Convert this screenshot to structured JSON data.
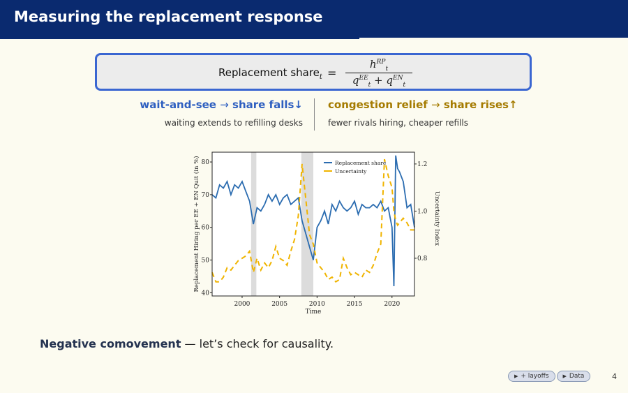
{
  "slide": {
    "title": "Measuring the replacement response",
    "page_number": "4"
  },
  "formula": {
    "lhs": "Replacement share",
    "lhs_sub": "t",
    "equals": "=",
    "num_base": "h",
    "num_sub": "t",
    "num_sup": "RP",
    "den_a_base": "q",
    "den_a_sub": "t",
    "den_a_sup": "EE",
    "den_plus": "+",
    "den_b_base": "q",
    "den_b_sub": "t",
    "den_b_sup": "EN"
  },
  "left": {
    "a": "wait-and-see",
    "arrow": "→",
    "b": "share falls",
    "dir": "↓",
    "sub": "waiting extends to refilling desks"
  },
  "right": {
    "a": "congestion relief",
    "arrow": "→",
    "b": "share rises",
    "dir": "↑",
    "sub": "fewer rivals hiring, cheaper refills"
  },
  "chart_data": {
    "type": "line",
    "xlabel": "Time",
    "ylabel": "Replacement Hiring per EE + EN Quit (in %)",
    "y2label": "Uncertainty Index",
    "xlim": [
      1996,
      2023
    ],
    "ylim": [
      39,
      83
    ],
    "y2lim": [
      0.64,
      1.25
    ],
    "x_ticks": [
      2000,
      2005,
      2010,
      2015,
      2020
    ],
    "y_ticks": [
      40,
      50,
      60,
      70,
      80
    ],
    "y2_ticks": [
      0.8,
      1.0,
      1.2
    ],
    "legend_position": "top-center",
    "recessions": [
      [
        2001.2,
        2001.9
      ],
      [
        2007.9,
        2009.5
      ]
    ],
    "colors": {
      "replacement": "#2b6cb0",
      "uncertainty": "#f0b400",
      "recession": "#dcdcdc"
    },
    "series": [
      {
        "name": "Replacement share",
        "axis": "left",
        "style": "solid",
        "x": [
          1996.0,
          1996.5,
          1997.0,
          1997.5,
          1998.0,
          1998.5,
          1999.0,
          1999.5,
          2000.0,
          2000.5,
          2001.0,
          2001.5,
          2002.0,
          2002.5,
          2003.0,
          2003.5,
          2004.0,
          2004.5,
          2005.0,
          2005.5,
          2006.0,
          2006.5,
          2007.0,
          2007.5,
          2008.0,
          2008.5,
          2009.0,
          2009.5,
          2010.0,
          2010.5,
          2011.0,
          2011.5,
          2012.0,
          2012.5,
          2013.0,
          2013.5,
          2014.0,
          2014.5,
          2015.0,
          2015.5,
          2016.0,
          2016.5,
          2017.0,
          2017.5,
          2018.0,
          2018.5,
          2019.0,
          2019.5,
          2020.0,
          2020.25,
          2020.5,
          2020.75,
          2021.0,
          2021.5,
          2022.0,
          2022.5,
          2023.0
        ],
        "values": [
          70,
          69,
          73,
          72,
          74,
          70,
          73,
          72,
          74,
          71,
          68,
          61,
          66,
          65,
          67,
          70,
          68,
          70,
          67,
          69,
          70,
          67,
          68,
          69,
          62,
          58,
          54,
          50,
          60,
          62,
          65,
          61,
          67,
          65,
          68,
          66,
          65,
          66,
          68,
          64,
          67,
          66,
          66,
          67,
          66,
          68,
          65,
          66,
          60,
          42,
          82,
          78,
          77,
          74,
          66,
          67,
          60
        ]
      },
      {
        "name": "Uncertainty",
        "axis": "right",
        "style": "dashed",
        "x": [
          1996.0,
          1996.5,
          1997.0,
          1997.5,
          1998.0,
          1998.5,
          1999.0,
          1999.5,
          2000.0,
          2000.5,
          2001.0,
          2001.5,
          2002.0,
          2002.5,
          2003.0,
          2003.5,
          2004.0,
          2004.5,
          2005.0,
          2005.5,
          2006.0,
          2006.5,
          2007.0,
          2007.5,
          2008.0,
          2008.5,
          2009.0,
          2009.5,
          2010.0,
          2010.5,
          2011.0,
          2011.5,
          2012.0,
          2012.5,
          2013.0,
          2013.5,
          2014.0,
          2014.5,
          2015.0,
          2015.5,
          2016.0,
          2016.5,
          2017.0,
          2017.5,
          2018.0,
          2018.5,
          2019.0,
          2019.5,
          2020.0,
          2020.25,
          2020.5,
          2020.75,
          2021.0,
          2021.5,
          2022.0,
          2022.5,
          2023.0
        ],
        "values": [
          0.74,
          0.7,
          0.7,
          0.72,
          0.76,
          0.75,
          0.77,
          0.79,
          0.8,
          0.81,
          0.83,
          0.74,
          0.8,
          0.75,
          0.78,
          0.76,
          0.79,
          0.85,
          0.8,
          0.79,
          0.77,
          0.83,
          0.88,
          0.98,
          1.2,
          1.05,
          0.9,
          0.86,
          0.78,
          0.76,
          0.74,
          0.71,
          0.72,
          0.7,
          0.71,
          0.8,
          0.76,
          0.73,
          0.74,
          0.73,
          0.72,
          0.75,
          0.74,
          0.77,
          0.82,
          0.86,
          1.22,
          1.15,
          1.1,
          1.0,
          0.96,
          0.94,
          0.95,
          0.97,
          0.95,
          0.92,
          0.92
        ]
      }
    ]
  },
  "conclusion": {
    "bold": "Negative comovement",
    "rest": " — let’s check for causality."
  },
  "nav": {
    "btn1": "+ layoffs",
    "btn2": "Data",
    "tri": "▶"
  }
}
